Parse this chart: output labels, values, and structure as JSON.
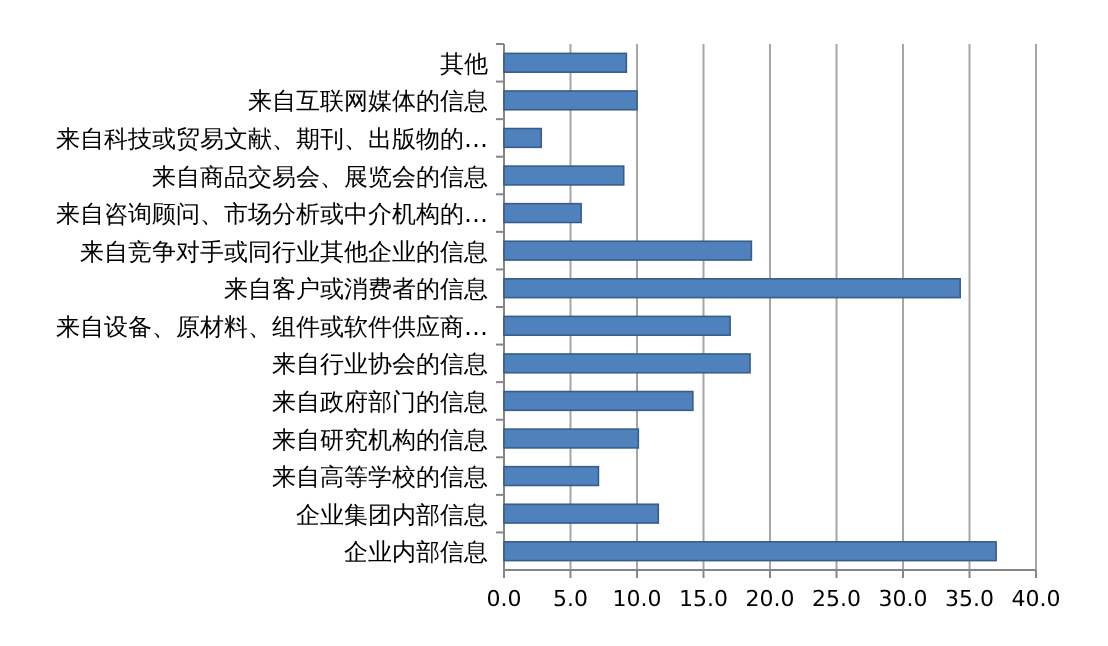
{
  "chart_data": {
    "type": "bar",
    "orientation": "horizontal",
    "categories": [
      "其他",
      "来自互联网媒体的信息",
      "来自科技或贸易文献、期刊、出版物的…",
      "来自商品交易会、展览会的信息",
      "来自咨询顾问、市场分析或中介机构的…",
      "来自竞争对手或同行业其他企业的信息",
      "来自客户或消费者的信息",
      "来自设备、原材料、组件或软件供应商…",
      "来自行业协会的信息",
      "来自政府部门的信息",
      "来自研究机构的信息",
      "来自高等学校的信息",
      "企业集团内部信息",
      "企业内部信息"
    ],
    "values": [
      9.2,
      10.0,
      2.8,
      9.0,
      5.8,
      18.6,
      34.3,
      17.0,
      18.5,
      14.2,
      10.1,
      7.1,
      11.6,
      37.0
    ],
    "color": "#4f81bd",
    "xlim": [
      0,
      40
    ],
    "xticks": [
      {
        "value": 0,
        "label": "0.0"
      },
      {
        "value": 5,
        "label": "5.0"
      },
      {
        "value": 10,
        "label": "10.0"
      },
      {
        "value": 15,
        "label": "15.0"
      },
      {
        "value": 20,
        "label": "20.0"
      },
      {
        "value": 25,
        "label": "25.0"
      },
      {
        "value": 30,
        "label": "30.0"
      },
      {
        "value": 35,
        "label": "35.0"
      },
      {
        "value": 40,
        "label": "40.0"
      }
    ],
    "grid": "x"
  }
}
